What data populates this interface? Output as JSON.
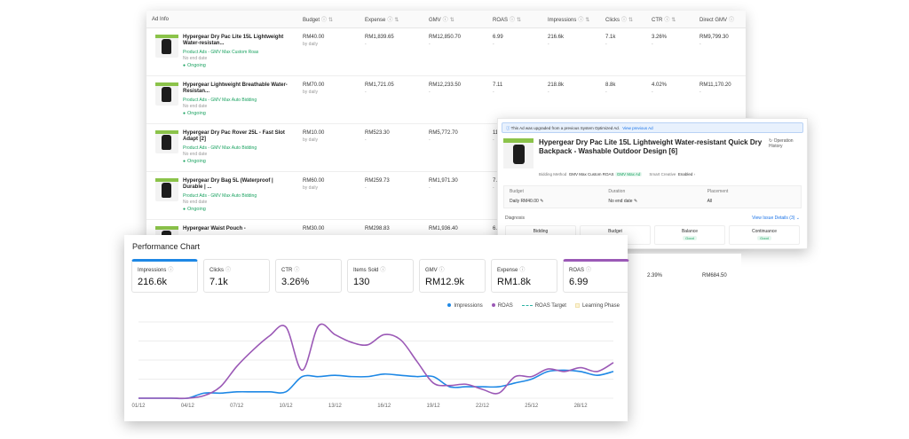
{
  "table": {
    "headers": [
      {
        "label": "Ad Info",
        "help": false
      },
      {
        "label": "Budget",
        "help": true
      },
      {
        "label": "Expense",
        "help": true
      },
      {
        "label": "GMV",
        "help": true
      },
      {
        "label": "ROAS",
        "help": true
      },
      {
        "label": "Impressions",
        "help": true
      },
      {
        "label": "Clicks",
        "help": true
      },
      {
        "label": "CTR",
        "help": true
      },
      {
        "label": "Direct GMV",
        "help": true
      }
    ],
    "rows": [
      {
        "title": "Hypergear Dry Pac Lite 15L Lightweight Water-resistan...",
        "type": "Product Ads - GMV Max Custom Roas",
        "end": "No end date",
        "status": "Ongoing",
        "budget": "RM40.00",
        "budget_sub": "by daily",
        "expense": "RM1,839.65",
        "gmv": "RM12,850.70",
        "roas": "6.99",
        "impressions": "216.6k",
        "clicks": "7.1k",
        "ctr": "3.26%",
        "direct_gmv": "RM9,799.30"
      },
      {
        "title": "Hypergear Lightweight Breathable Water-Resistan...",
        "type": "Product Ads - GMV Max Auto Bidding",
        "end": "No end date",
        "status": "Ongoing",
        "budget": "RM70.00",
        "budget_sub": "by daily",
        "expense": "RM1,721.05",
        "gmv": "RM12,233.50",
        "roas": "7.11",
        "impressions": "218.8k",
        "clicks": "8.8k",
        "ctr": "4.02%",
        "direct_gmv": "RM11,170.20"
      },
      {
        "title": "Hypergear Dry Pac Rover 25L - Fast Slot Adapt [2]",
        "type": "Product Ads - GMV Max Auto Bidding",
        "end": "No end date",
        "status": "Ongoing",
        "budget": "RM10.00",
        "budget_sub": "by daily",
        "expense": "RM523.30",
        "gmv": "RM5,772.70",
        "roas": "11.03",
        "impressions": "",
        "clicks": "",
        "ctr": "",
        "direct_gmv": ""
      },
      {
        "title": "Hypergear Dry Bag 5L (Waterproof | Durable | ...",
        "type": "Product Ads - GMV Max Auto Bidding",
        "end": "No end date",
        "status": "Ongoing",
        "budget": "RM60.00",
        "budget_sub": "by daily",
        "expense": "RM259.73",
        "gmv": "RM1,971.30",
        "roas": "7.59",
        "impressions": "",
        "clicks": "",
        "ctr": "",
        "direct_gmv": ""
      },
      {
        "title": "Hypergear Waist Pouch -",
        "type": "",
        "end": "",
        "status": "",
        "budget": "RM30.00",
        "budget_sub": "",
        "expense": "RM298.83",
        "gmv": "RM1,936.40",
        "roas": "6.48",
        "impressions": "",
        "clicks": "",
        "ctr": "",
        "direct_gmv": ""
      }
    ]
  },
  "detail": {
    "notice": "This Ad was upgraded from a previous System Optimized Ad.",
    "notice_link": "View previous Ad",
    "title": "Hypergear Dry Pac Lite 15L Lightweight Water-resistant Quick Dry Backpack - Washable Outdoor Design [6]",
    "op_history": "Operation History",
    "bidding_label": "Bidding Method",
    "bidding_value": "GMV Max Custom ROAS",
    "bidding_tag": "GMV Max Ad",
    "creative_label": "Smart Creative",
    "creative_value": "Enabled",
    "budget_label": "Budget",
    "budget_value": "Daily RM40.00",
    "duration_label": "Duration",
    "duration_value": "No end date",
    "placement_label": "Placement",
    "placement_value": "All",
    "diagnosis_label": "Diagnosis",
    "issue_link": "View Issue Details (3)",
    "cards": [
      {
        "label": "Bidding",
        "status": ""
      },
      {
        "label": "Budget",
        "status": ""
      },
      {
        "label": "Balance",
        "status": "Good"
      },
      {
        "label": "Continuance",
        "status": "Good"
      }
    ]
  },
  "remnant": {
    "ctr": "2.39%",
    "direct_gmv": "RM684.50"
  },
  "chart_panel": {
    "title": "Performance Chart",
    "metrics": [
      {
        "label": "Impressions",
        "value": "216.6k",
        "selected": "blue"
      },
      {
        "label": "Clicks",
        "value": "7.1k",
        "selected": ""
      },
      {
        "label": "CTR",
        "value": "3.26%",
        "selected": ""
      },
      {
        "label": "Items Sold",
        "value": "130",
        "selected": ""
      },
      {
        "label": "GMV",
        "value": "RM12.9k",
        "selected": ""
      },
      {
        "label": "Expense",
        "value": "RM1.8k",
        "selected": ""
      },
      {
        "label": "ROAS",
        "value": "6.99",
        "selected": "purple"
      }
    ],
    "legend": [
      {
        "label": "Impressions",
        "kind": "dot",
        "color": "#1e88e5"
      },
      {
        "label": "ROAS",
        "kind": "dot",
        "color": "#9b59b6"
      },
      {
        "label": "ROAS Target",
        "kind": "dash",
        "color": "#2bb3a3"
      },
      {
        "label": "Learning Phase",
        "kind": "square",
        "color": "#fdf3d6"
      }
    ]
  },
  "chart_data": {
    "type": "line",
    "x": [
      "01/12",
      "02/12",
      "03/12",
      "04/12",
      "05/12",
      "06/12",
      "07/12",
      "08/12",
      "09/12",
      "10/12",
      "11/12",
      "12/12",
      "13/12",
      "14/12",
      "15/12",
      "16/12",
      "17/12",
      "18/12",
      "19/12",
      "20/12",
      "21/12",
      "22/12",
      "23/12",
      "24/12",
      "25/12",
      "26/12",
      "27/12",
      "28/12",
      "29/12",
      "30/12"
    ],
    "x_ticks": [
      "01/12",
      "04/12",
      "07/12",
      "10/12",
      "13/12",
      "16/12",
      "19/12",
      "22/12",
      "25/12",
      "28/12"
    ],
    "series": [
      {
        "name": "Impressions",
        "color": "#1e88e5",
        "values": [
          0,
          0,
          0,
          0,
          4,
          4,
          5,
          5,
          5,
          5,
          17,
          17,
          18,
          17,
          17,
          19,
          18,
          17,
          17,
          9,
          9,
          9,
          9,
          12,
          15,
          21,
          22,
          21,
          18,
          21
        ]
      },
      {
        "name": "ROAS",
        "color": "#9b59b6",
        "values": [
          0,
          0,
          0,
          0,
          2,
          9,
          25,
          38,
          49,
          56,
          22,
          57,
          50,
          44,
          42,
          50,
          46,
          29,
          12,
          10,
          11,
          7,
          4,
          17,
          17,
          23,
          21,
          24,
          21,
          28
        ]
      }
    ],
    "ylim": [
      0,
      60
    ],
    "grid": true,
    "legend_position": "top-right"
  },
  "colors": {
    "accent_green": "#1aa260",
    "link_blue": "#1a73e8",
    "impressions": "#1e88e5",
    "roas": "#9b59b6"
  }
}
